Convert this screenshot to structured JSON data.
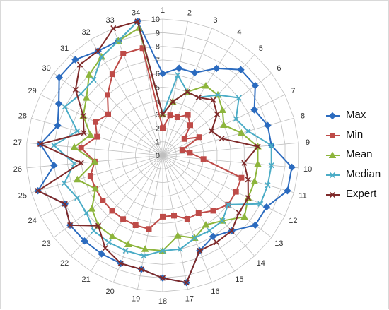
{
  "chart_data": {
    "type": "radar",
    "title": "",
    "categories": [
      "1",
      "2",
      "3",
      "4",
      "5",
      "6",
      "7",
      "8",
      "9",
      "10",
      "11",
      "12",
      "13",
      "14",
      "15",
      "16",
      "17",
      "18",
      "19",
      "20",
      "21",
      "22",
      "23",
      "24",
      "25",
      "26",
      "27",
      "28",
      "29",
      "30",
      "31",
      "32",
      "33",
      "34"
    ],
    "radial_ticks": [
      "0",
      "1",
      "2",
      "3",
      "4",
      "5",
      "6",
      "7",
      "8",
      "9",
      "10"
    ],
    "rlim": [
      0,
      10
    ],
    "legend_position": "right",
    "series": [
      {
        "name": "Max",
        "color": "#2b6bbf",
        "marker": "diamond",
        "values": [
          6,
          6.5,
          6.5,
          7.5,
          8.5,
          8.5,
          7.5,
          8,
          8,
          9.5,
          9.5,
          8.5,
          8.5,
          7.5,
          7,
          7.5,
          9.5,
          9,
          8.5,
          8.5,
          8.5,
          8.5,
          8.5,
          8,
          9.5,
          8,
          9,
          8,
          8.5,
          9.5,
          9.5,
          9,
          9,
          10
        ]
      },
      {
        "name": "Min",
        "color": "#be4b48",
        "marker": "square",
        "values": [
          2,
          3,
          3,
          3.5,
          3,
          2,
          3,
          1.5,
          2,
          3,
          6,
          6,
          6,
          5.5,
          5,
          5,
          4.5,
          4.5,
          5.5,
          5.5,
          5.5,
          5.5,
          5.5,
          5.5,
          5.5,
          5,
          6,
          5,
          5.5,
          5,
          6,
          7,
          8,
          8
        ]
      },
      {
        "name": "Mean",
        "color": "#8db53c",
        "marker": "triangle",
        "values": [
          3,
          4,
          5,
          6,
          6,
          5.5,
          5,
          6,
          7,
          7,
          7,
          7,
          7.5,
          6.5,
          6,
          6.5,
          6,
          7,
          7,
          7,
          7,
          7,
          6.5,
          5.5,
          6.5,
          5,
          6.5,
          5.5,
          6.5,
          7,
          8,
          8.5,
          9,
          9.5
        ]
      },
      {
        "name": "Median",
        "color": "#4bacc6",
        "marker": "x",
        "values": [
          3,
          6,
          5,
          5,
          6,
          7,
          6,
          6.5,
          8,
          8,
          8,
          8,
          6,
          6.5,
          6.5,
          6.5,
          7,
          7,
          7.5,
          7.5,
          7.5,
          7.5,
          7,
          7,
          7.5,
          6.5,
          8,
          6.5,
          8,
          7.5,
          7.5,
          8.5,
          9,
          10
        ]
      },
      {
        "name": "Expert",
        "color": "#7f2a2a",
        "marker": "x",
        "values": [
          3,
          4,
          5,
          5,
          5.5,
          5,
          4,
          4.5,
          7,
          6,
          6.5,
          7,
          7,
          7.5,
          7.5,
          7.5,
          9.5,
          9,
          8.5,
          8.5,
          8,
          7,
          8.5,
          8,
          9.5,
          6,
          9,
          6,
          6.5,
          8,
          9,
          9,
          10,
          10
        ]
      }
    ]
  }
}
